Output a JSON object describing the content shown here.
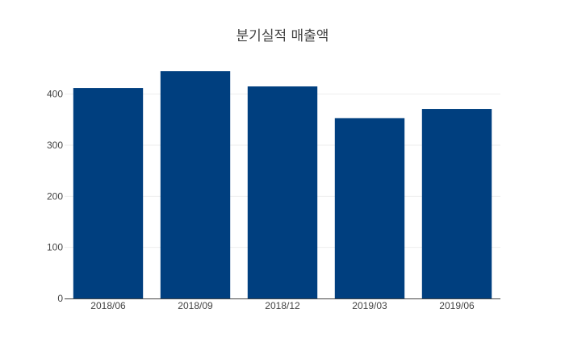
{
  "chart_data": {
    "type": "bar",
    "title": "분기실적 매출액",
    "xlabel": "",
    "ylabel": "",
    "categories": [
      "2018/06",
      "2018/09",
      "2018/12",
      "2019/03",
      "2019/06"
    ],
    "values": [
      412,
      445,
      415,
      353,
      371
    ],
    "ylim": [
      0,
      450
    ],
    "yticks": [
      0,
      100,
      200,
      300,
      400
    ],
    "grid": true,
    "colors": {
      "bar": "#003f7f"
    }
  }
}
